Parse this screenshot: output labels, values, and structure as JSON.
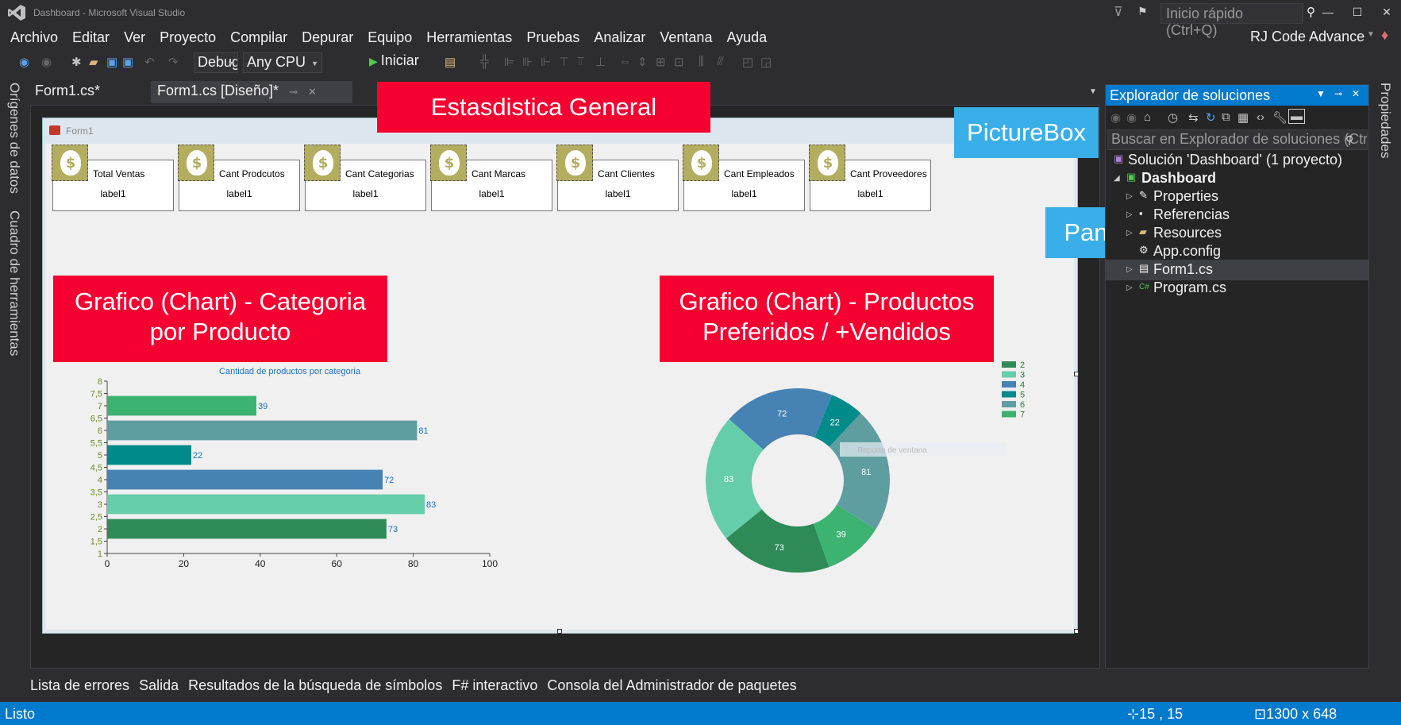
{
  "window": {
    "title": "Dashboard - Microsoft Visual Studio",
    "quick_launch_placeholder": "Inicio rápido (Ctrl+Q)",
    "user_name": "RJ Code Advance"
  },
  "menu": {
    "items": [
      "Archivo",
      "Editar",
      "Ver",
      "Proyecto",
      "Compilar",
      "Depurar",
      "Equipo",
      "Herramientas",
      "Pruebas",
      "Analizar",
      "Ventana",
      "Ayuda"
    ]
  },
  "toolbar": {
    "config_value": "Debug",
    "platform_value": "Any CPU",
    "start_label": "Iniciar"
  },
  "side_tabs": {
    "data_sources": "Orígenes de datos",
    "toolbox": "Cuadro de herramientas",
    "properties": "Propiedades"
  },
  "doc_tabs": {
    "code_tab": "Form1.cs*",
    "design_tab": "Form1.cs [Diseño]*"
  },
  "form": {
    "title": "Form1",
    "cards": [
      {
        "title": "Total Ventas",
        "value": "label1"
      },
      {
        "title": "Cant Prodcutos",
        "value": "label1"
      },
      {
        "title": "Cant Categorias",
        "value": "label1"
      },
      {
        "title": "Cant Marcas",
        "value": "label1"
      },
      {
        "title": "Cant Clientes",
        "value": "label1"
      },
      {
        "title": "Cant Empleados",
        "value": "label1"
      },
      {
        "title": "Cant Proveedores",
        "value": "label1"
      }
    ],
    "pie_overlay_text": "Reporte de ventana"
  },
  "annotations": {
    "title_banner": "Estasdistica General",
    "picturebox": "PictureBox",
    "panel": "Panel",
    "chart_left_line1": "Grafico (Chart) - Categoria",
    "chart_left_line2": "por Producto",
    "chart_right_line1": "Grafico (Chart) - Productos",
    "chart_right_line2": "Preferidos / +Vendidos"
  },
  "chart_data": [
    {
      "type": "bar",
      "title": "Cantidad de productos por categoria",
      "orientation": "horizontal",
      "categories": [
        2,
        3,
        4,
        5,
        6,
        7
      ],
      "values": [
        73,
        83,
        72,
        22,
        81,
        39
      ],
      "colors": [
        "#2e8b57",
        "#66cdaa",
        "#4682b4",
        "#008b8b",
        "#5f9ea0",
        "#3cb371"
      ],
      "xlim": [
        0,
        100
      ],
      "xticks": [
        0,
        20,
        40,
        60,
        80,
        100
      ],
      "ylim": [
        1,
        8
      ],
      "yticks": [
        "1",
        "1,5",
        "2",
        "2,5",
        "3",
        "3,5",
        "4",
        "4,5",
        "5",
        "5,5",
        "6",
        "6,5",
        "7",
        "7,5",
        "8"
      ],
      "data_labels": true
    },
    {
      "type": "pie",
      "subtype": "doughnut",
      "labels": [
        "2",
        "3",
        "4",
        "5",
        "6",
        "7"
      ],
      "values": [
        73,
        83,
        72,
        22,
        81,
        39
      ],
      "colors": [
        "#2e8b57",
        "#66cdaa",
        "#4682b4",
        "#008b8b",
        "#5f9ea0",
        "#3cb371"
      ],
      "legend": "top-right"
    }
  ],
  "solution_explorer": {
    "title": "Explorador de soluciones",
    "search_placeholder": "Buscar en Explorador de soluciones (Ctrl+;)",
    "solution": "Solución 'Dashboard'  (1 proyecto)",
    "project": "Dashboard",
    "items": [
      "Properties",
      "Referencias",
      "Resources",
      "App.config",
      "Form1.cs",
      "Program.cs"
    ]
  },
  "bottom_tabs": [
    "Lista de errores",
    "Salida",
    "Resultados de la búsqueda de símbolos",
    "F# interactivo",
    "Consola del Administrador de paquetes"
  ],
  "status": {
    "text": "Listo",
    "position": "15 , 15",
    "size": "1300 x 648"
  },
  "colors": {
    "accent": "#007acc",
    "annotation_red": "#f50031",
    "annotation_blue": "#3aaee8",
    "card_icon": "#b3ad5f"
  }
}
